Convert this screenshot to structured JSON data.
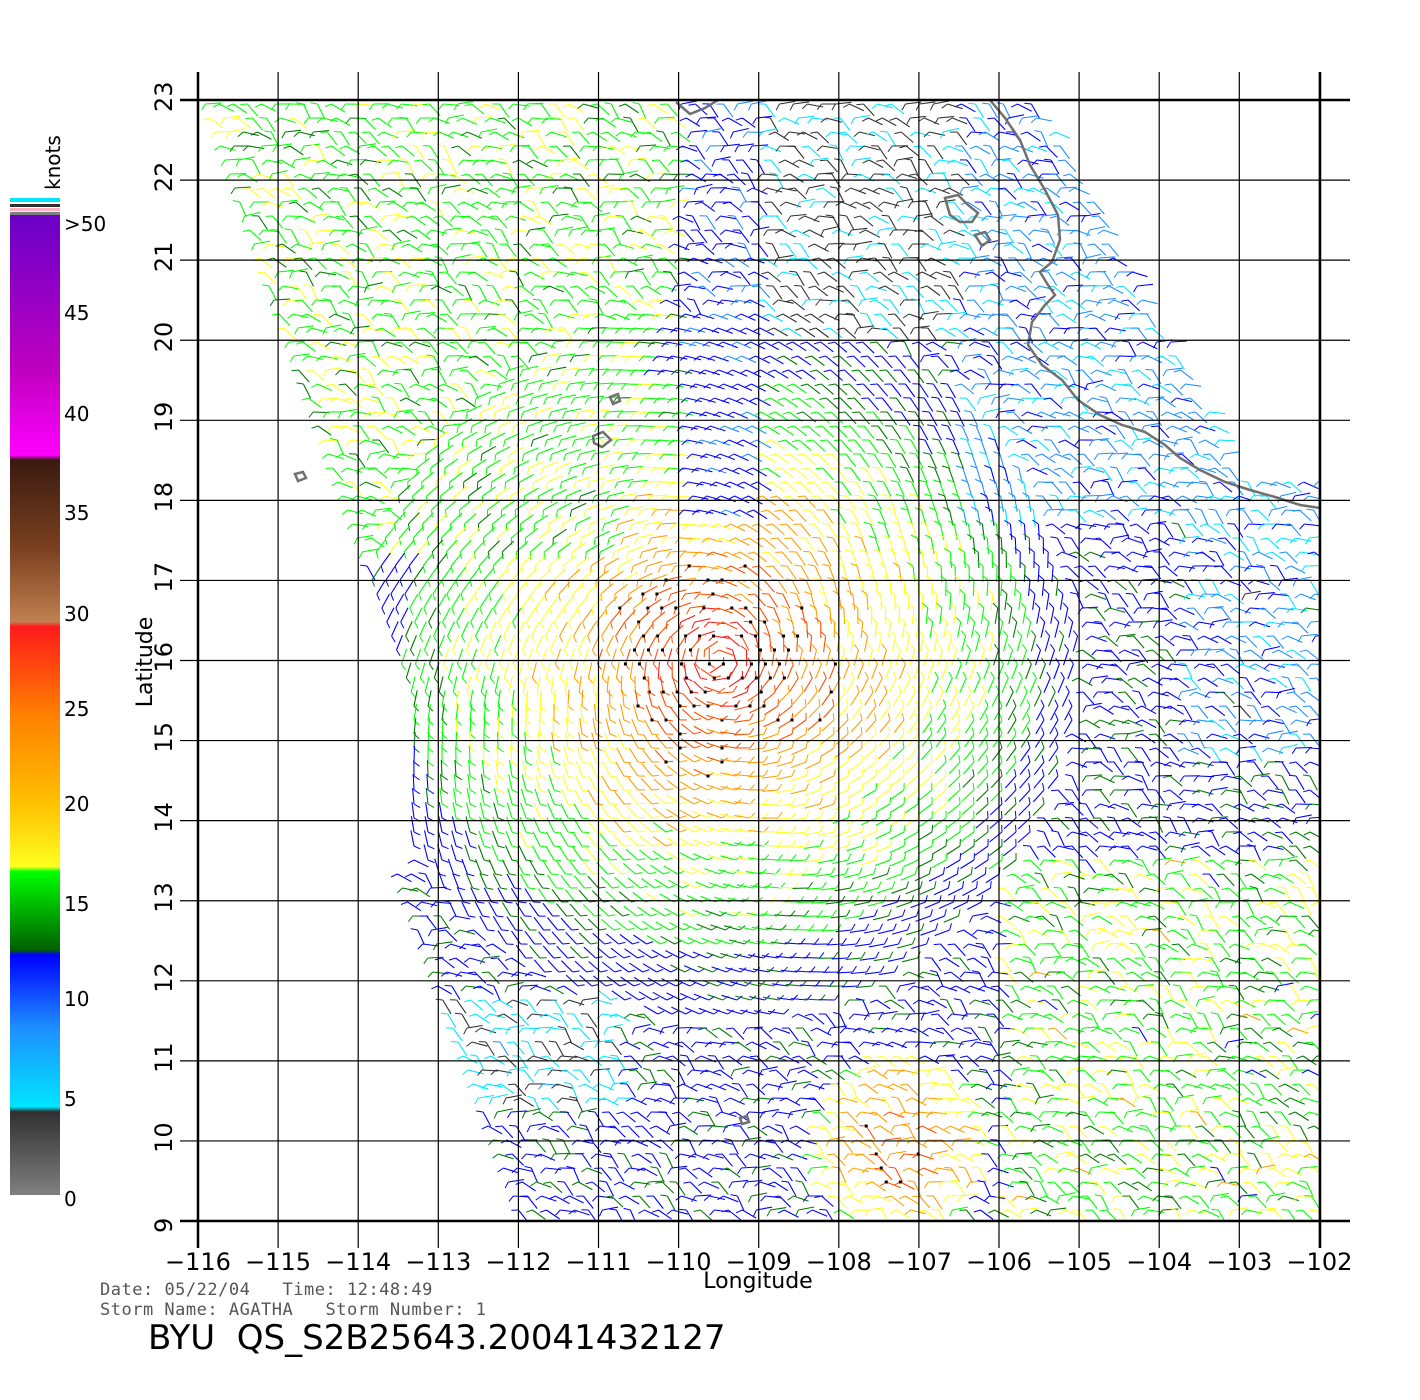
{
  "map": {
    "x_axis_title": "Longitude",
    "y_axis_title": "Latitude",
    "lon_range": [
      -116,
      -101.8
    ],
    "lat_range": [
      9,
      23
    ],
    "lon_ticks": [
      "-116",
      "-115",
      "-114",
      "-113",
      "-112",
      "-111",
      "-110",
      "-109",
      "-108",
      "-107",
      "-106",
      "-105",
      "-104",
      "-103",
      "-102"
    ],
    "lat_ticks": [
      "9",
      "10",
      "11",
      "12",
      "13",
      "14",
      "15",
      "16",
      "17",
      "18",
      "19",
      "20",
      "21",
      "22",
      "23"
    ],
    "coastline_color": "#707070",
    "grid_color": "#000000",
    "wind_vectors": "dense wind barbs colored by speed; strongest near storm center around 16N 109.5W",
    "storm_center": {
      "lon": -109.5,
      "lat": 16.0
    }
  },
  "legend": {
    "unit": "knots",
    "labels": [
      ">50",
      "45",
      "40",
      "35",
      "30",
      "25",
      "20",
      "15",
      "10",
      "5",
      "0"
    ],
    "colors": {
      "gray": "#808080",
      "black": "#303030",
      "cyan": "#00e5ff",
      "light_blue": "#1e90ff",
      "blue": "#0000ff",
      "dark_green": "#007a00",
      "green": "#00ff00",
      "yellow": "#ffff20",
      "orange": "#ffa000",
      "red": "#ff1a1a",
      "brown": "#7a4020",
      "dark_brown": "#3a1a10",
      "magenta": "#ff00ff",
      "purple": "#6a00c8"
    }
  },
  "info": {
    "date_label": "Date:",
    "date_value": "05/22/04",
    "time_label": "Time:",
    "time_value": "12:48:49",
    "storm_name_label": "Storm Name:",
    "storm_name_value": "AGATHA",
    "storm_number_label": "Storm Number:",
    "storm_number_value": "1",
    "product_id": "BYU  QS_S2B25643.20041432127"
  }
}
